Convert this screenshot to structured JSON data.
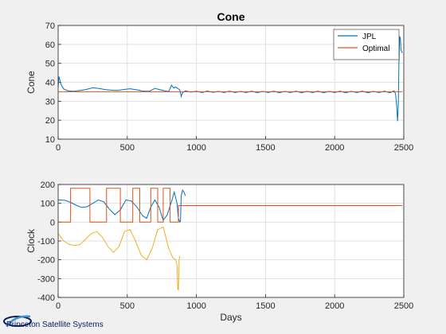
{
  "logo_text": "Princeton Satellite Systems",
  "chart_data": [
    {
      "type": "line",
      "title": "Cone",
      "xlabel": "",
      "ylabel": "Cone",
      "xlim": [
        0,
        2500
      ],
      "ylim": [
        10,
        70
      ],
      "xticks": [
        "0",
        "500",
        "1000",
        "1500",
        "2000",
        "2500"
      ],
      "yticks": [
        "10",
        "20",
        "30",
        "40",
        "50",
        "60",
        "70"
      ],
      "grid": true,
      "legend": "top-right",
      "series": [
        {
          "name": "JPL",
          "color": "#0072BD",
          "x": [
            0,
            5,
            20,
            40,
            70,
            110,
            150,
            200,
            250,
            290,
            340,
            390,
            430,
            470,
            520,
            570,
            610,
            660,
            700,
            740,
            770,
            800,
            820,
            835,
            850,
            870,
            880,
            890,
            900,
            920,
            960,
            1000,
            1040,
            1080,
            1120,
            1160,
            1200,
            1240,
            1280,
            1320,
            1360,
            1400,
            1440,
            1480,
            1520,
            1560,
            1600,
            1640,
            1680,
            1720,
            1760,
            1800,
            1840,
            1880,
            1920,
            1960,
            2000,
            2040,
            2080,
            2120,
            2160,
            2200,
            2240,
            2280,
            2320,
            2360,
            2400,
            2430,
            2440,
            2448,
            2455,
            2460,
            2465,
            2470,
            2475,
            2480,
            2490
          ],
          "y": [
            37,
            43,
            39,
            36.5,
            35.5,
            35.3,
            35.6,
            36.2,
            37.1,
            36.8,
            36.2,
            35.8,
            35.7,
            36.2,
            36.6,
            36.0,
            35.4,
            35.3,
            36.8,
            36.0,
            35.5,
            35.2,
            38.5,
            37.0,
            37.5,
            36.5,
            36.0,
            32.5,
            34.5,
            35.5,
            34.8,
            35.3,
            34.6,
            35.4,
            34.7,
            35.2,
            34.6,
            35.3,
            34.6,
            35.2,
            34.6,
            35.3,
            34.5,
            35.2,
            34.6,
            35.3,
            34.5,
            35.2,
            34.6,
            35.3,
            34.5,
            35.2,
            34.6,
            35.3,
            34.5,
            35.2,
            34.6,
            35.3,
            34.5,
            35.2,
            34.6,
            35.3,
            34.5,
            35.2,
            34.6,
            35.3,
            34.5,
            35.5,
            34.0,
            28.0,
            19.5,
            28.0,
            50.0,
            64.0,
            63.5,
            57.0,
            55.5
          ]
        },
        {
          "name": "Optimal",
          "color": "#D95319",
          "x": [
            0,
            2490
          ],
          "y": [
            35.0,
            35.0
          ]
        }
      ]
    },
    {
      "type": "line",
      "title": "",
      "xlabel": "Days",
      "ylabel": "Clock",
      "xlim": [
        0,
        2500
      ],
      "ylim": [
        -400,
        200
      ],
      "xticks": [
        "0",
        "500",
        "1000",
        "1500",
        "2000",
        "2500"
      ],
      "yticks": [
        "-400",
        "-300",
        "-200",
        "-100",
        "0",
        "100",
        "200"
      ],
      "grid": true,
      "legend": "none",
      "series": [
        {
          "color": "#0072BD",
          "x": [
            0,
            50,
            90,
            130,
            170,
            210,
            250,
            290,
            330,
            370,
            410,
            450,
            490,
            530,
            570,
            610,
            640,
            670,
            700,
            730,
            760,
            790,
            820,
            840,
            860,
            870,
            880,
            885,
            890,
            900,
            910,
            920
          ],
          "y": [
            118,
            116,
            105,
            90,
            78,
            82,
            100,
            118,
            108,
            70,
            40,
            65,
            118,
            112,
            80,
            35,
            20,
            80,
            118,
            80,
            10,
            40,
            110,
            160,
            100,
            20,
            0,
            5,
            140,
            170,
            160,
            140
          ]
        },
        {
          "color": "#D95319",
          "x": [
            0,
            90,
            90,
            230,
            230,
            350,
            350,
            450,
            450,
            540,
            540,
            590,
            590,
            670,
            670,
            720,
            720,
            760,
            760,
            810,
            810,
            870,
            870,
            2490
          ],
          "y": [
            0,
            0,
            180,
            180,
            0,
            0,
            180,
            180,
            0,
            0,
            180,
            180,
            0,
            0,
            180,
            180,
            0,
            0,
            180,
            180,
            0,
            0,
            88,
            88
          ]
        },
        {
          "color": "#EDB120",
          "x": [
            0,
            40,
            80,
            120,
            160,
            200,
            240,
            280,
            320,
            360,
            400,
            440,
            480,
            520,
            560,
            600,
            640,
            680,
            720,
            760,
            800,
            830,
            850,
            860,
            865,
            870,
            875,
            880
          ],
          "y": [
            -60,
            -100,
            -118,
            -125,
            -118,
            -90,
            -60,
            -50,
            -80,
            -130,
            -160,
            -130,
            -50,
            -40,
            -100,
            -175,
            -200,
            -140,
            -40,
            -25,
            -140,
            -190,
            -200,
            -230,
            -355,
            -360,
            -200,
            -180
          ]
        }
      ]
    }
  ]
}
